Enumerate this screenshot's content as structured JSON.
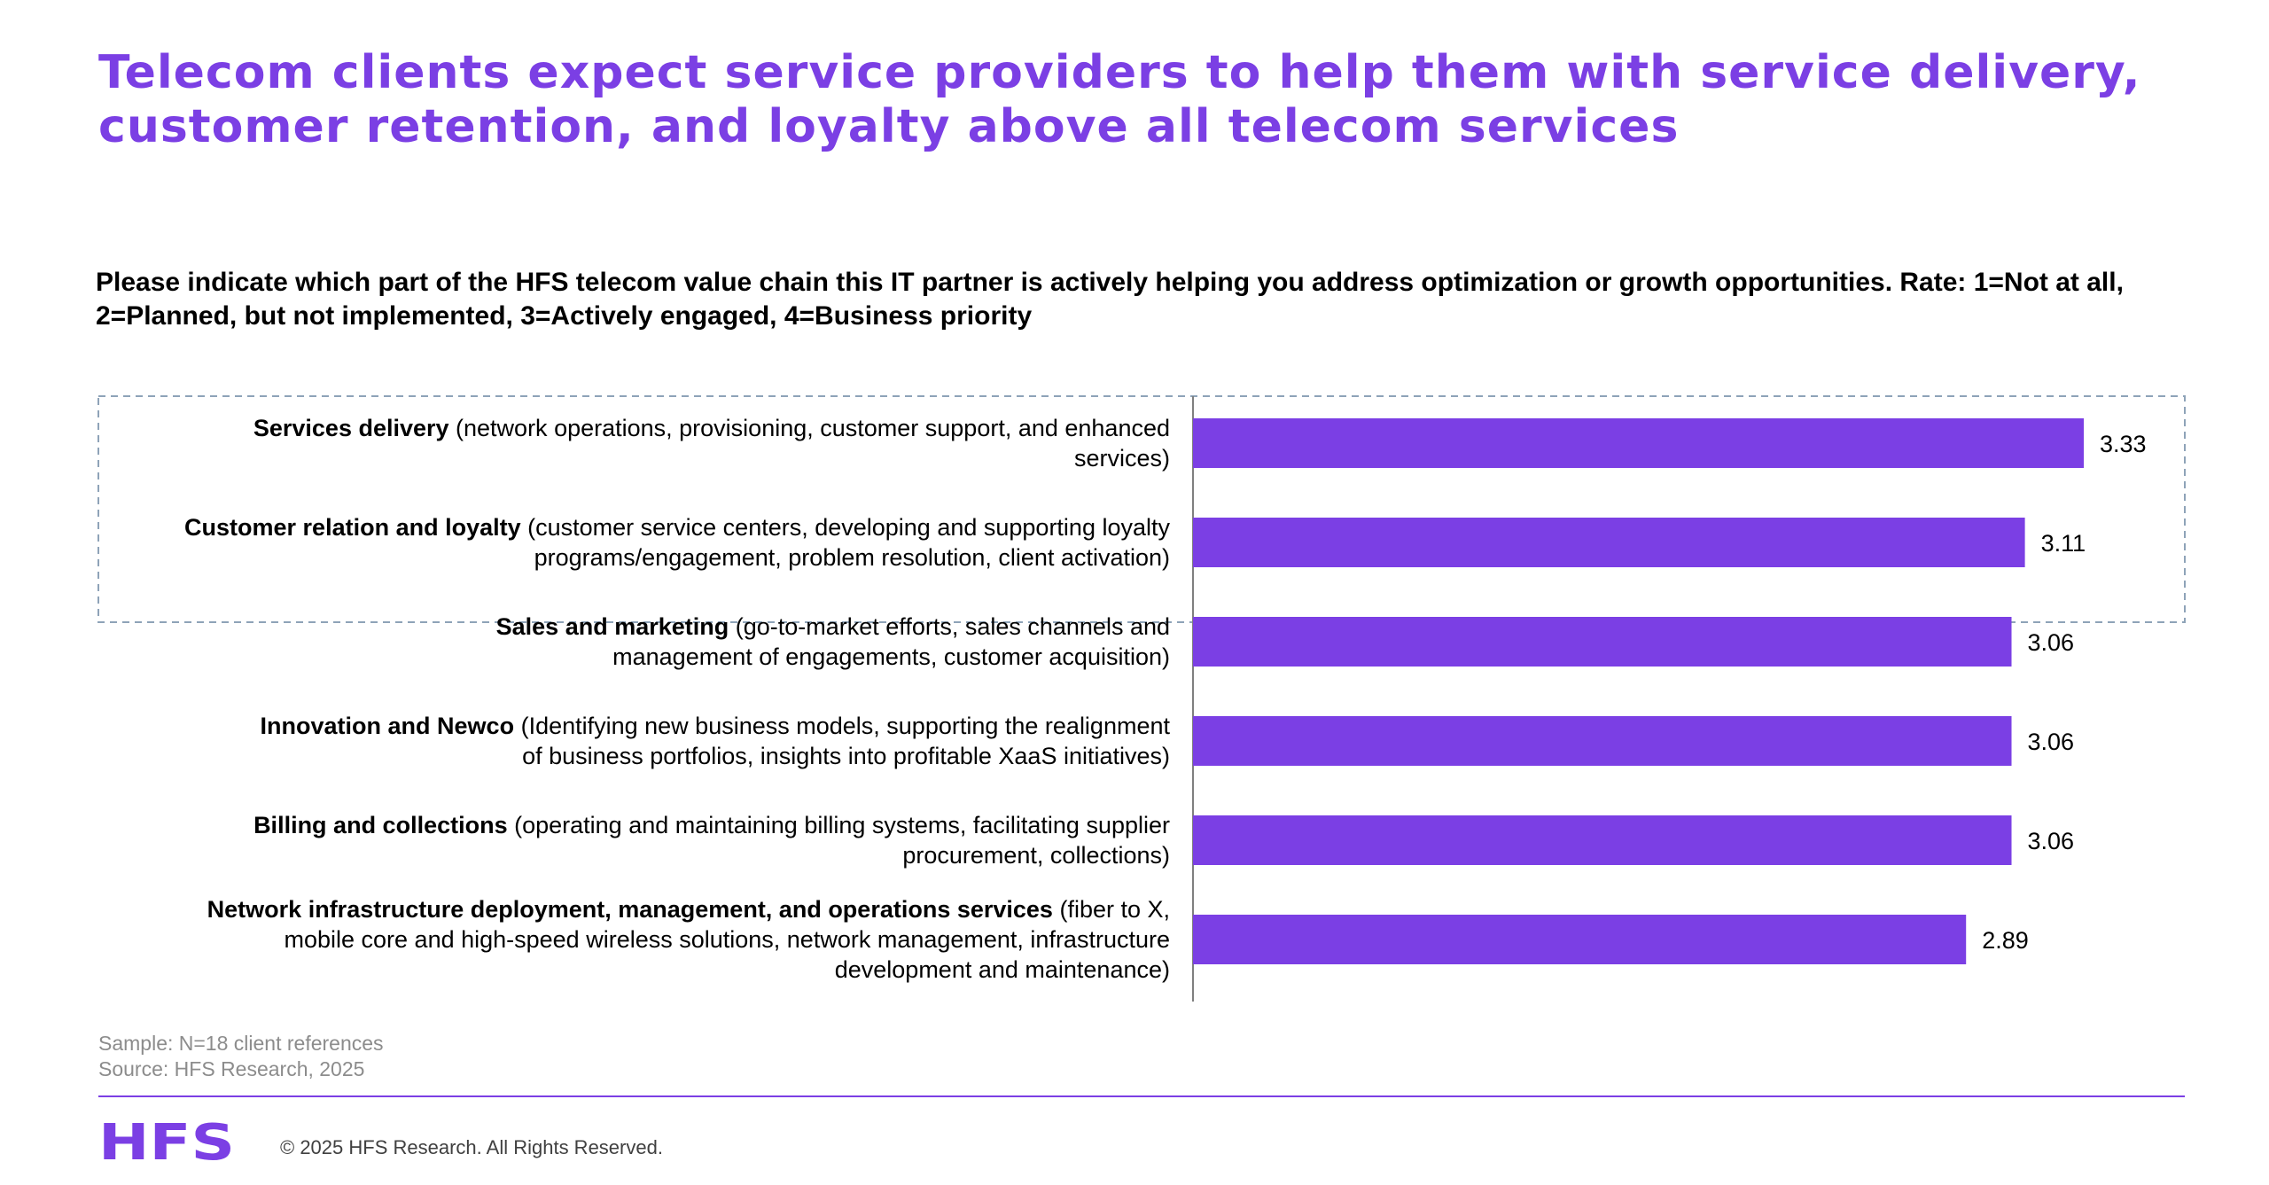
{
  "title": "Telecom clients expect service providers to help them with service delivery, customer retention, and loyalty above all telecom services",
  "question": "Please indicate which part of the HFS telecom value chain this IT partner is actively helping you address optimization or growth opportunities. Rate: 1=Not at all, 2=Planned, but not implemented, 3=Actively engaged, 4=Business priority",
  "colors": {
    "accent": "#7b3fe4",
    "bar": "#7b3fe4",
    "highlight_border": "#8ea3b8",
    "footnote": "#8c8c8c"
  },
  "chart_data": {
    "type": "bar",
    "orientation": "horizontal",
    "categories": [
      "Services delivery",
      "Customer relation and loyalty",
      "Sales and marketing",
      "Innovation and Newco",
      "Billing and collections",
      "Network infrastructure deployment, management, and operations services"
    ],
    "category_details": [
      [
        "(network operations, provisioning, customer support, and enhanced",
        "services)"
      ],
      [
        "(customer service centers, developing and supporting loyalty",
        "programs/engagement, problem resolution, client activation)"
      ],
      [
        "(go-to-market efforts, sales channels and",
        "management of engagements, customer acquisition)"
      ],
      [
        "(Identifying new business models, supporting the realignment",
        "of business portfolios, insights into profitable XaaS initiatives)"
      ],
      [
        "(operating and maintaining billing systems, facilitating supplier",
        "procurement, collections)"
      ],
      [
        "(fiber to X,",
        "mobile core and high-speed wireless solutions, network management, infrastructure",
        "development and maintenance)"
      ]
    ],
    "values": [
      3.33,
      3.11,
      3.06,
      3.06,
      3.06,
      2.89
    ],
    "value_labels": [
      "3.33",
      "3.11",
      "3.06",
      "3.06",
      "3.06",
      "2.89"
    ],
    "xlim": [
      0,
      3.7
    ],
    "highlighted_categories": [
      "Services delivery",
      "Customer relation and loyalty"
    ],
    "grid": false,
    "legend": "none"
  },
  "footer": {
    "sample": "Sample: N=18 client references",
    "source": "Source: HFS Research, 2025",
    "logo_text": "HFS",
    "copyright": "© 2025 HFS Research. All Rights Reserved."
  }
}
